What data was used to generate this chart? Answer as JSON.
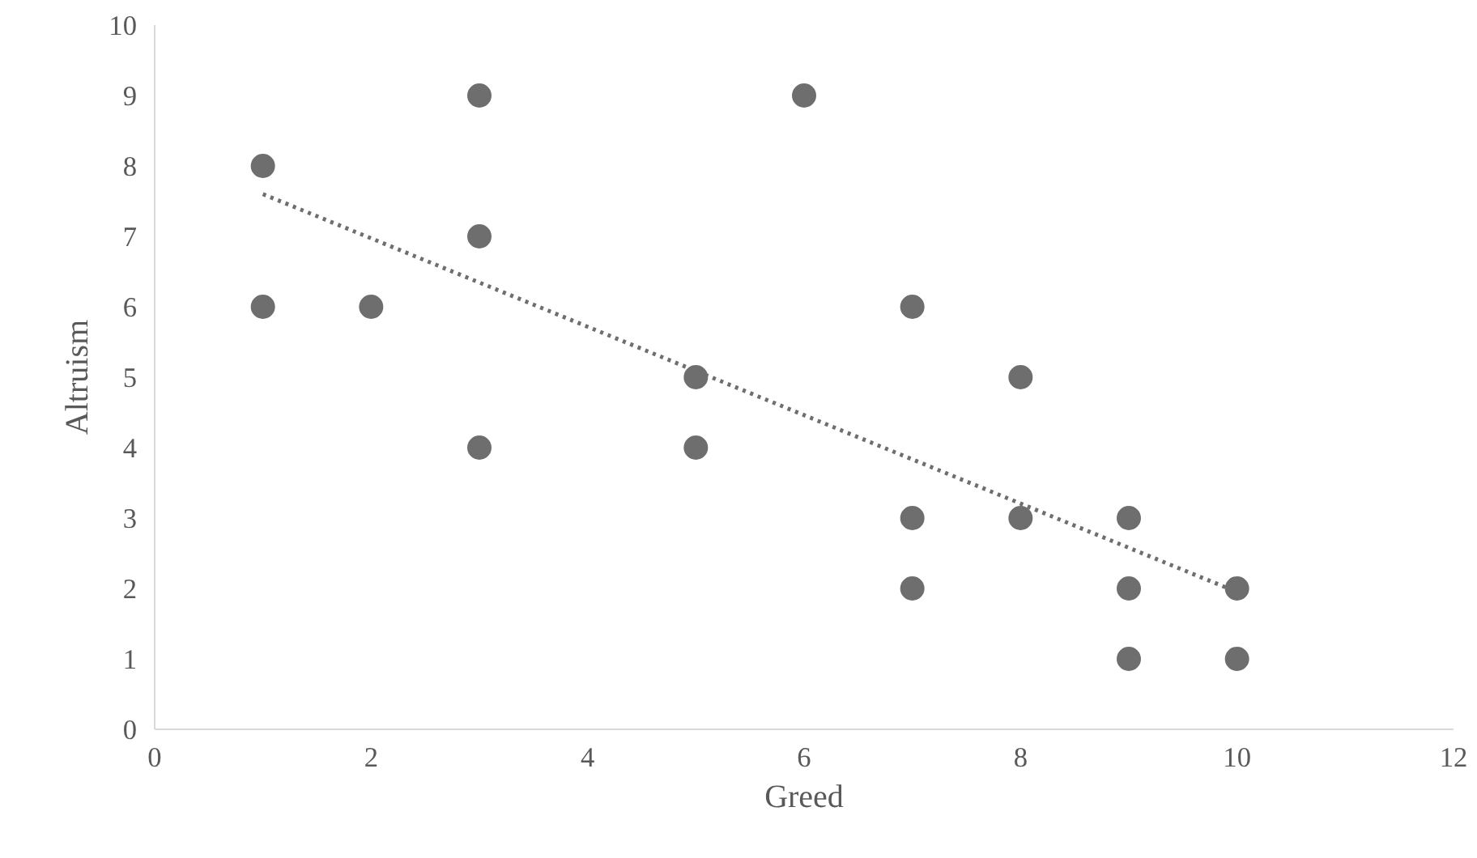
{
  "chart_data": {
    "type": "scatter",
    "xlabel": "Greed",
    "ylabel": "Altruism",
    "xlim": [
      0,
      12
    ],
    "xticks": [
      0,
      2,
      4,
      6,
      8,
      10,
      12
    ],
    "ylim": [
      0,
      10
    ],
    "yticks": [
      0,
      1,
      2,
      3,
      4,
      5,
      6,
      7,
      8,
      9,
      10
    ],
    "grid": false,
    "series": [
      {
        "marker": "circle",
        "color": "#6e6e6e",
        "x": [
          1,
          1,
          2,
          3,
          3,
          3,
          5,
          5,
          6,
          7,
          7,
          7,
          8,
          8,
          9,
          9,
          9,
          10,
          10
        ],
        "values": [
          8,
          6,
          6,
          9,
          7,
          4,
          5,
          4,
          9,
          6,
          3,
          2,
          5,
          3,
          3,
          2,
          1,
          2,
          1
        ]
      },
      {
        "type": "line",
        "color": "#6e6e6e",
        "line_style": "dotted",
        "x": [
          1,
          10
        ],
        "values": [
          7.6,
          1.95
        ]
      }
    ]
  }
}
